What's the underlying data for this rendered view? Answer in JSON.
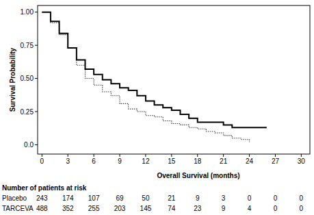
{
  "chart_data": {
    "type": "line",
    "x_label": "Overall Survival (months)",
    "y_label": "Survival Probability",
    "risk_title": "Number of patients at risk",
    "xlim": [
      -0.5,
      31
    ],
    "ylim": [
      -0.07,
      1.05
    ],
    "xticks": [
      0,
      3,
      6,
      9,
      12,
      15,
      18,
      21,
      24,
      27,
      30
    ],
    "yticks": [
      {
        "value": 0,
        "label": "0.0"
      },
      0.25,
      {
        "value": 0.5,
        "label": "0.50"
      },
      0.75,
      {
        "value": 1,
        "label": "1.00"
      }
    ],
    "grid": false,
    "series": [
      {
        "name": "Placebo",
        "color": "#333333",
        "line_style": "dotted",
        "x": [
          0,
          1,
          2,
          3,
          4,
          5,
          6,
          7,
          8,
          9,
          10,
          11,
          12,
          13,
          14,
          15,
          16,
          17,
          18,
          19,
          20,
          21,
          22,
          23,
          24
        ],
        "values": [
          1.0,
          0.92,
          0.83,
          0.73,
          0.6,
          0.5,
          0.45,
          0.4,
          0.37,
          0.31,
          0.27,
          0.25,
          0.22,
          0.21,
          0.18,
          0.16,
          0.15,
          0.13,
          0.12,
          0.1,
          0.09,
          0.07,
          0.05,
          0.04,
          0.02
        ],
        "at_risk": [
          243,
          174,
          107,
          69,
          50,
          21,
          9,
          3,
          0,
          0,
          0
        ]
      },
      {
        "name": "TARCEVA",
        "color": "#000000",
        "line_style": "solid",
        "x": [
          0,
          1,
          2,
          3,
          4,
          5,
          6,
          7,
          8,
          9,
          10,
          11,
          12,
          13,
          14,
          15,
          16,
          17,
          18,
          20,
          21,
          22,
          26
        ],
        "values": [
          1.0,
          0.93,
          0.84,
          0.73,
          0.64,
          0.57,
          0.53,
          0.49,
          0.46,
          0.43,
          0.41,
          0.37,
          0.33,
          0.3,
          0.28,
          0.26,
          0.23,
          0.2,
          0.17,
          0.17,
          0.15,
          0.13,
          0.13
        ],
        "at_risk": [
          488,
          352,
          255,
          203,
          145,
          74,
          23,
          9,
          4,
          0,
          0
        ]
      }
    ]
  }
}
